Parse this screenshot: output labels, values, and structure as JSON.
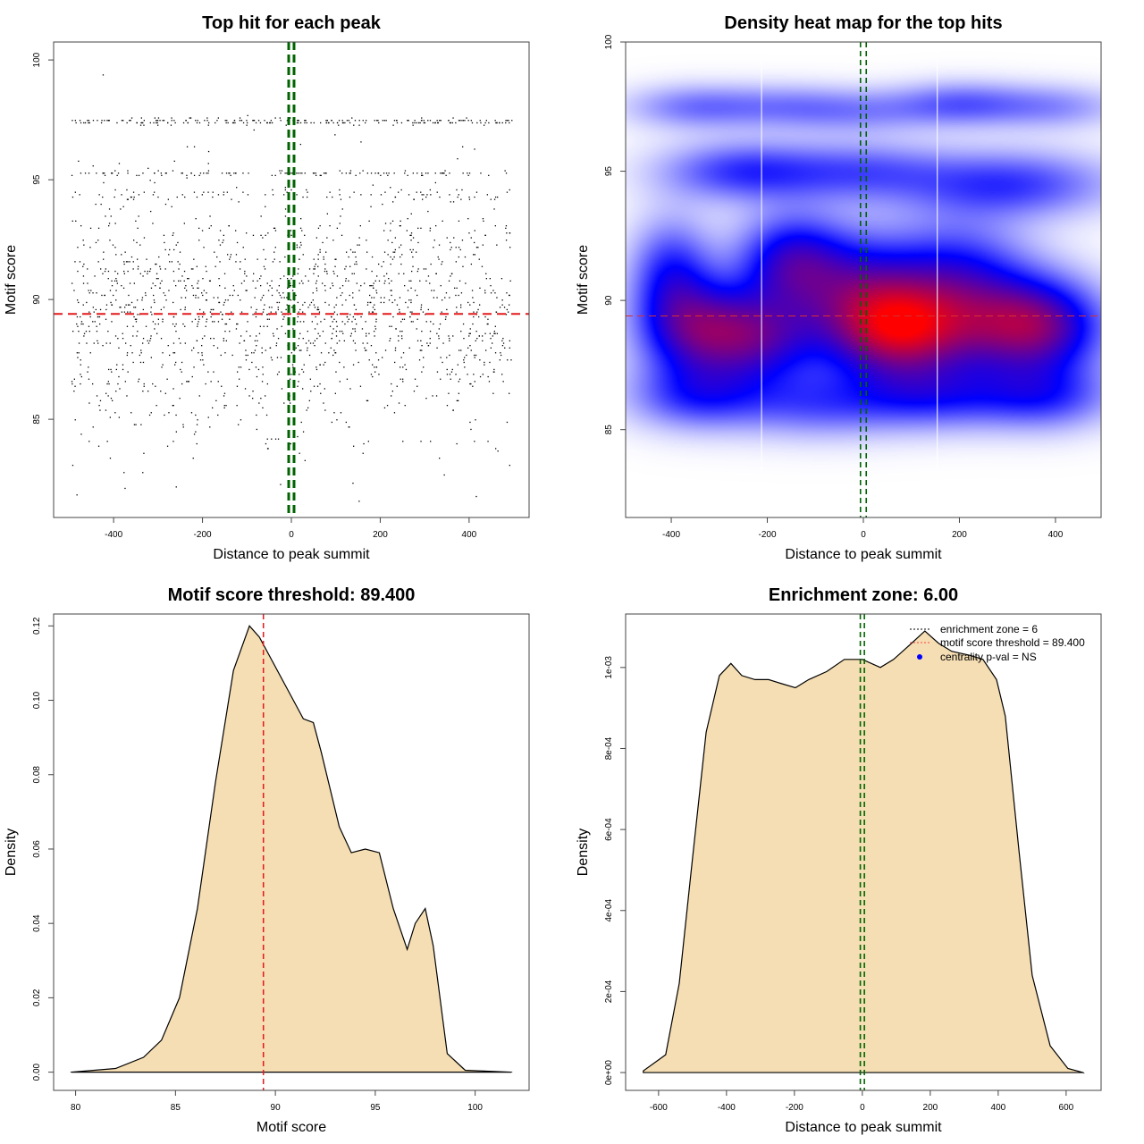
{
  "colors": {
    "threshold": "#e31a1c",
    "zone": "#006400",
    "fill": "#f5deb3",
    "point": "#000000",
    "legend_dot": "#0000ff"
  },
  "chart_data": [
    {
      "type": "scatter",
      "title": "Top hit for each peak",
      "xlabel": "Distance to peak summit",
      "ylabel": "Motif score",
      "xlim": [
        -535,
        535
      ],
      "ylim": [
        80.9,
        100.75
      ],
      "xticks": [
        -400,
        -200,
        0,
        200,
        400
      ],
      "xtick_labels": [
        "-400",
        "-200",
        "0",
        "200",
        "400"
      ],
      "yticks": [
        85,
        90,
        95,
        100
      ],
      "ytick_labels": [
        "85",
        "90",
        "95",
        "100"
      ],
      "threshold": 89.4,
      "zone": [
        -6,
        6
      ],
      "n_points": 2000,
      "x_range": [
        -495,
        495
      ],
      "score_step": 0.1,
      "score_mixture": [
        {
          "mean": 97.45,
          "sd": 0.06,
          "weight": 0.12
        },
        {
          "mean": 95.3,
          "sd": 0.05,
          "weight": 0.05
        },
        {
          "mean": 94.4,
          "sd": 0.12,
          "weight": 0.04
        },
        {
          "mean": 89.5,
          "sd": 2.6,
          "weight": 0.79
        }
      ]
    },
    {
      "type": "heatmap",
      "title": "Density heat map for the top hits",
      "xlabel": "Distance to peak summit",
      "ylabel": "Motif score",
      "xlim": [
        -495,
        495
      ],
      "ylim": [
        81.6,
        100
      ],
      "xticks": [
        -400,
        -200,
        0,
        200,
        400
      ],
      "xtick_labels": [
        "-400",
        "-200",
        "0",
        "200",
        "400"
      ],
      "yticks": [
        85,
        90,
        95,
        100
      ],
      "ytick_labels": [
        "85",
        "90",
        "95",
        "100"
      ],
      "threshold": 89.4,
      "zone": [
        -6,
        6
      ],
      "white_lines": [
        -212,
        154
      ],
      "density_components": [
        [
          -330,
          88.8,
          0.75,
          90,
          1.3
        ],
        [
          -150,
          91.5,
          0.6,
          80,
          1.3
        ],
        [
          -200,
          88.5,
          0.45,
          80,
          1.2
        ],
        [
          80,
          88.8,
          1.0,
          110,
          1.3
        ],
        [
          350,
          89.0,
          0.9,
          100,
          1.3
        ],
        [
          0,
          90.5,
          0.5,
          100,
          1.5
        ],
        [
          200,
          91.0,
          0.45,
          100,
          1.5
        ],
        [
          -400,
          91.0,
          0.45,
          60,
          1.5
        ],
        [
          -250,
          95.0,
          0.42,
          120,
          0.8
        ],
        [
          300,
          94.5,
          0.42,
          150,
          0.9
        ],
        [
          0,
          95.0,
          0.3,
          120,
          0.8
        ],
        [
          -350,
          97.5,
          0.28,
          100,
          0.6
        ],
        [
          -150,
          97.5,
          0.22,
          100,
          0.6
        ],
        [
          200,
          97.6,
          0.32,
          100,
          0.6
        ],
        [
          400,
          97.5,
          0.22,
          100,
          0.6
        ],
        [
          0,
          97.3,
          0.18,
          100,
          0.6
        ],
        [
          -350,
          86.3,
          0.38,
          100,
          0.9
        ],
        [
          -100,
          86.0,
          0.32,
          120,
          0.9
        ],
        [
          150,
          86.3,
          0.38,
          120,
          0.9
        ],
        [
          380,
          86.3,
          0.38,
          100,
          0.9
        ]
      ]
    },
    {
      "type": "area",
      "title": "Motif score threshold: 89.400",
      "xlabel": "Motif score",
      "ylabel": "Density",
      "xlim": [
        78.9,
        102.7
      ],
      "ylim": [
        -0.0049,
        0.1232
      ],
      "xticks": [
        80,
        85,
        90,
        95,
        100
      ],
      "xtick_labels": [
        "80",
        "85",
        "90",
        "95",
        "100"
      ],
      "yticks": [
        0,
        0.02,
        0.04,
        0.06,
        0.08,
        0.1,
        0.12
      ],
      "ytick_labels": [
        "0.00",
        "0.02",
        "0.04",
        "0.06",
        "0.08",
        "0.10",
        "0.12"
      ],
      "threshold": 89.4,
      "x": [
        79.8,
        82,
        83.4,
        84.3,
        85.2,
        86.1,
        87,
        87.9,
        88.7,
        89.2,
        89.7,
        90.5,
        91.4,
        91.9,
        92.3,
        93.2,
        93.8,
        94.5,
        95.2,
        95.9,
        96.6,
        97,
        97.5,
        97.9,
        98.6,
        99.5,
        101.8
      ],
      "y": [
        0,
        0.001,
        0.004,
        0.0086,
        0.02,
        0.044,
        0.078,
        0.108,
        0.12,
        0.117,
        0.112,
        0.104,
        0.095,
        0.094,
        0.086,
        0.066,
        0.059,
        0.06,
        0.059,
        0.044,
        0.033,
        0.04,
        0.044,
        0.034,
        0.005,
        0.0005,
        0
      ]
    },
    {
      "type": "area",
      "title": "Enrichment zone: 6.00",
      "xlabel": "Distance to peak summit",
      "ylabel": "Density",
      "xlim": [
        -697,
        703
      ],
      "ylim": [
        -4.4e-05,
        0.001132
      ],
      "xticks": [
        -600,
        -400,
        -200,
        0,
        200,
        400,
        600
      ],
      "xtick_labels": [
        "-600",
        "-400",
        "-200",
        "0",
        "200",
        "400",
        "600"
      ],
      "yticks": [
        0,
        0.0002,
        0.0004,
        0.0006,
        0.0008,
        0.001
      ],
      "ytick_labels": [
        "0e+00",
        "2e-04",
        "4e-04",
        "6e-04",
        "8e-04",
        "1e-03"
      ],
      "zone": [
        -6,
        6
      ],
      "x": [
        -645,
        -579,
        -539,
        -500,
        -460,
        -421,
        -387,
        -355,
        -316,
        -276,
        -237,
        -197,
        -158,
        -105,
        -53,
        0,
        53,
        92,
        132,
        184,
        224,
        263,
        316,
        355,
        395,
        421,
        461,
        500,
        553,
        605,
        650
      ],
      "y": [
        4e-06,
        4.4e-05,
        0.00022,
        0.00053,
        0.00084,
        0.00098,
        0.00101,
        0.00098,
        0.00097,
        0.00097,
        0.00096,
        0.00095,
        0.00097,
        0.00099,
        0.00102,
        0.00102,
        0.001,
        0.00102,
        0.00105,
        0.00109,
        0.00106,
        0.00104,
        0.00103,
        0.00102,
        0.00097,
        0.00088,
        0.00055,
        0.00024,
        6.6e-05,
        1e-05,
        0
      ],
      "legend": {
        "position": "top-right",
        "entries": [
          "enrichment zone = 6",
          "motif score threshold = 89.400",
          "centrality p-val = NS"
        ]
      }
    }
  ]
}
